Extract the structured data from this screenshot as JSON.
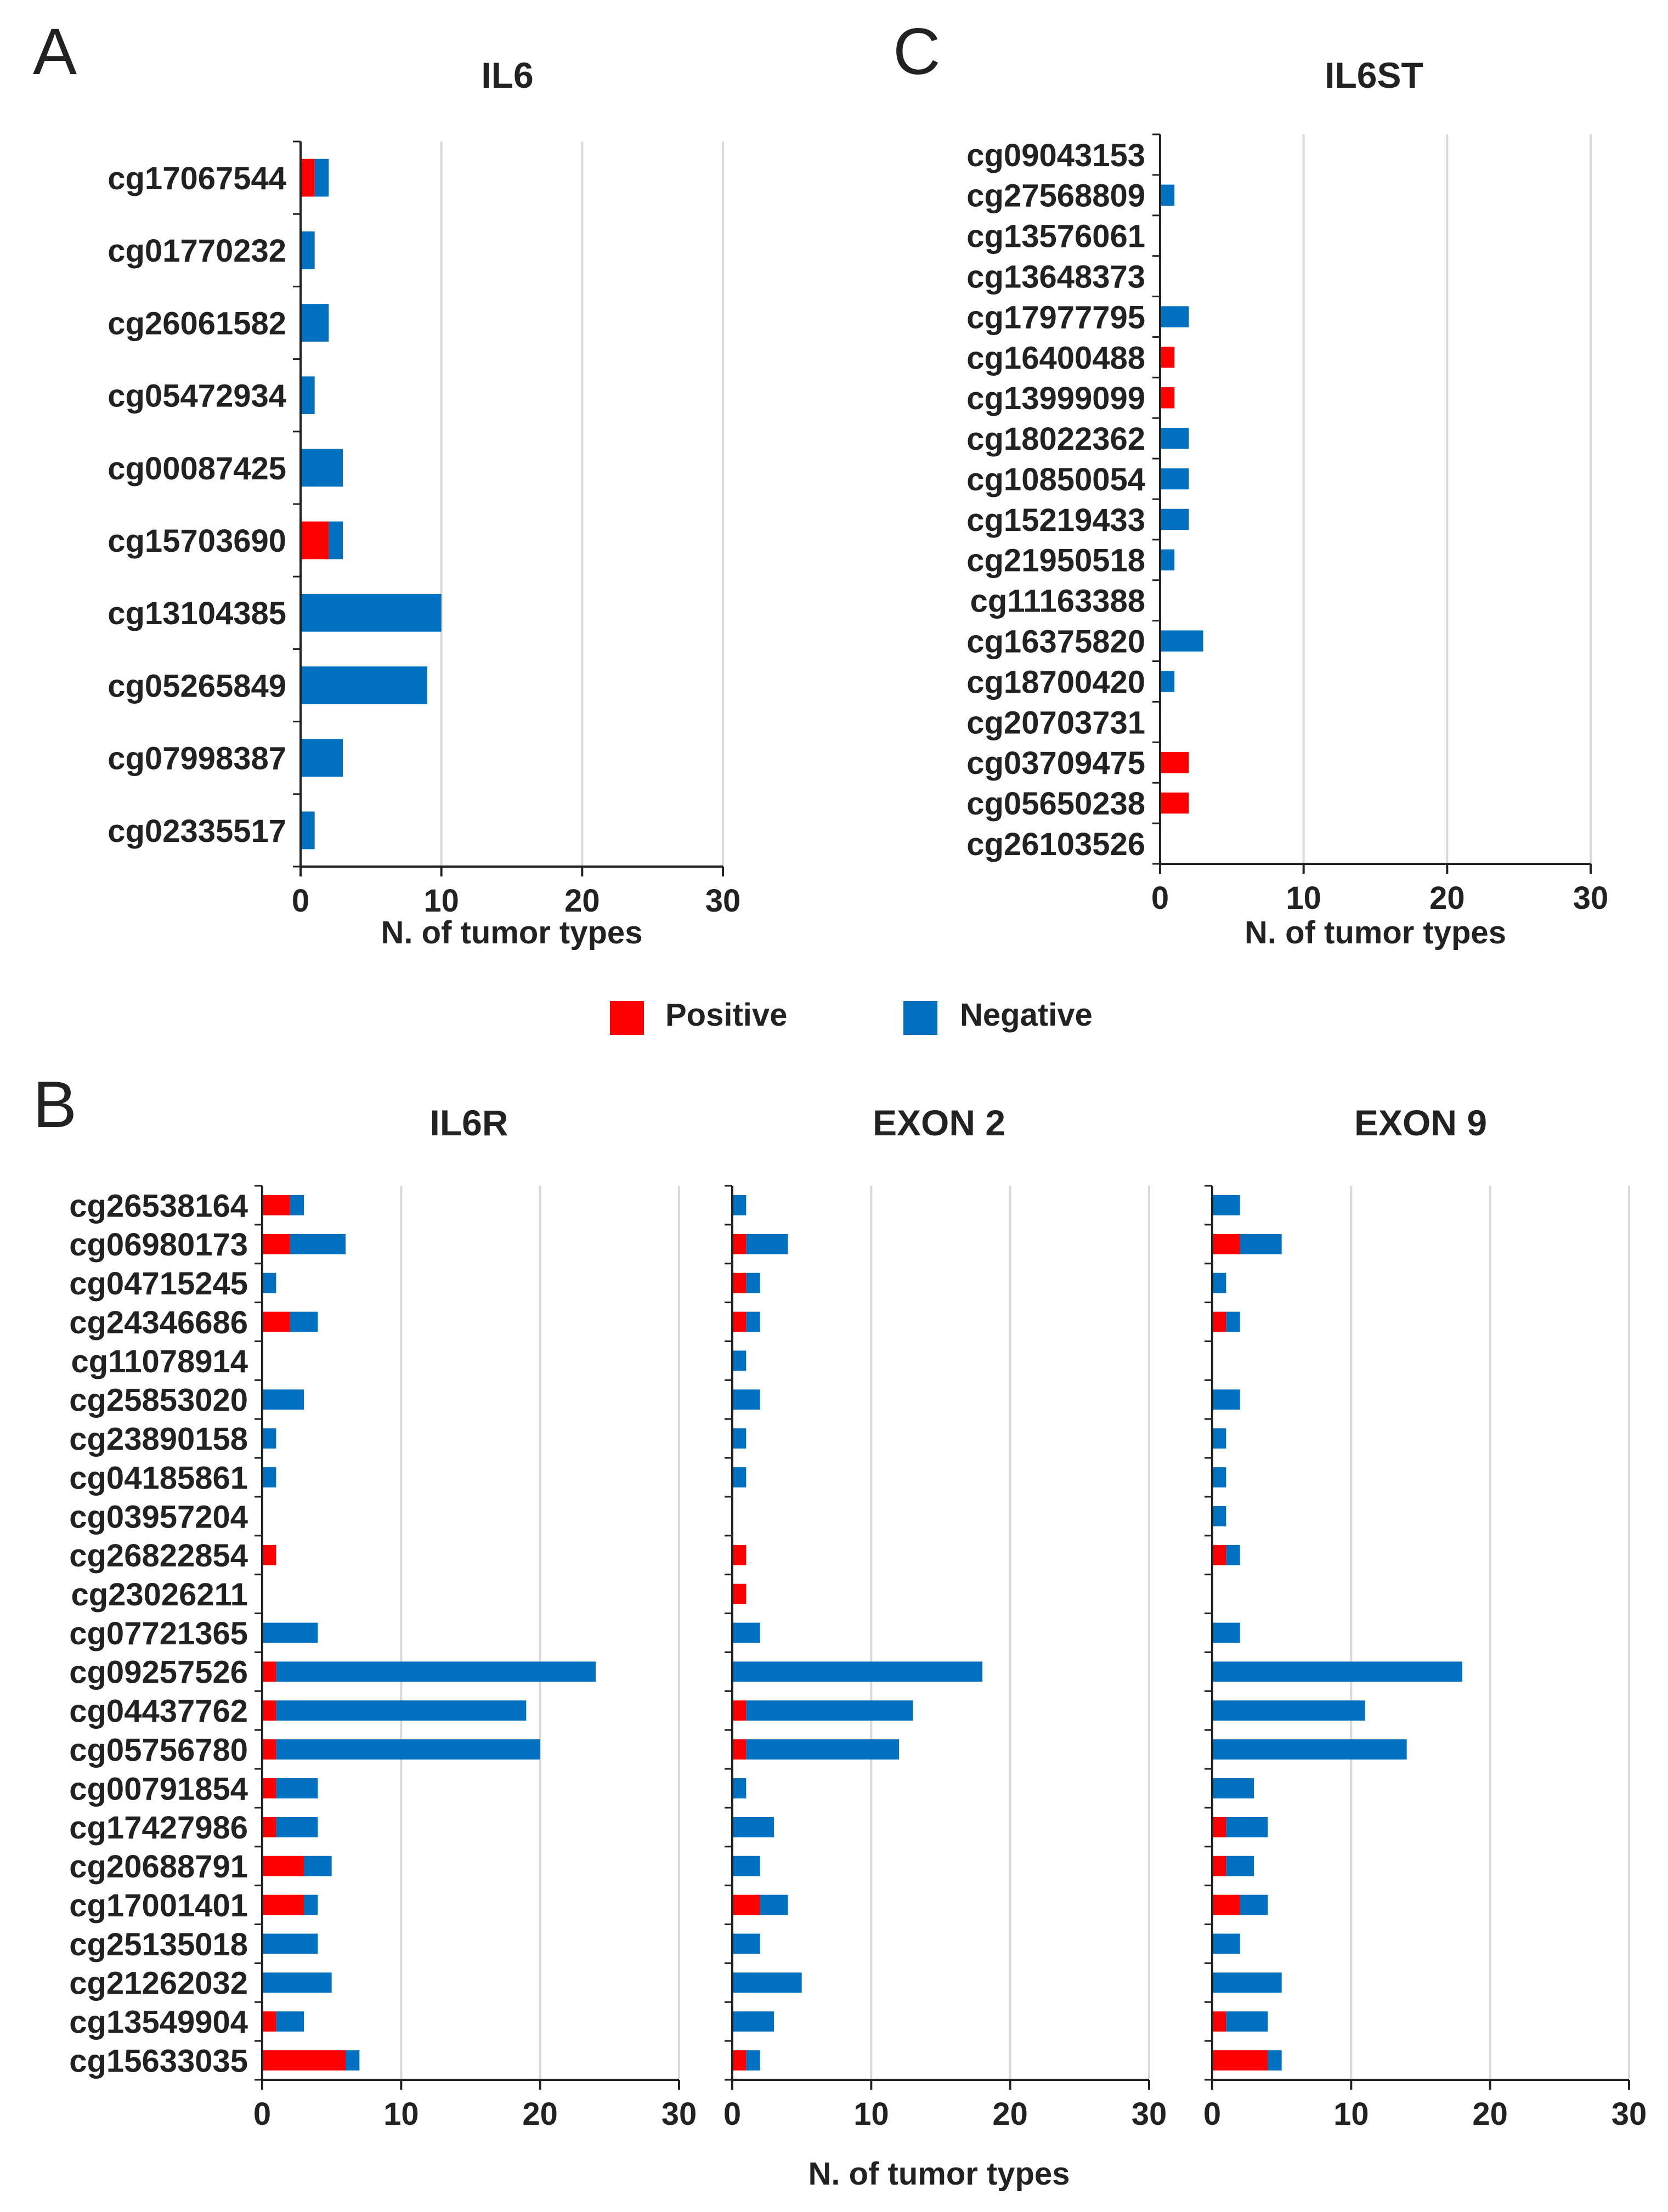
{
  "legend": {
    "positive": {
      "label": "Positive",
      "color": "#ff0000"
    },
    "negative": {
      "label": "Negative",
      "color": "#0070c0"
    }
  },
  "panel_letters": {
    "a": "A",
    "b": "B",
    "c": "C"
  },
  "chart_data": [
    {
      "id": "il6",
      "type": "bar",
      "stacked": true,
      "orientation": "horizontal",
      "title": "IL6",
      "xlabel": "N. of tumor types",
      "xlim": [
        0,
        30
      ],
      "xticks": [
        "0",
        "10",
        "20",
        "30"
      ],
      "categories": [
        "cg17067544",
        "cg01770232",
        "cg26061582",
        "cg05472934",
        "cg00087425",
        "cg15703690",
        "cg13104385",
        "cg05265849",
        "cg07998387",
        "cg02335517"
      ],
      "series": [
        {
          "name": "Positive",
          "values": [
            1,
            0,
            0,
            0,
            0,
            2,
            0,
            0,
            0,
            0
          ]
        },
        {
          "name": "Negative",
          "values": [
            1,
            1,
            2,
            1,
            3,
            1,
            10,
            9,
            3,
            1
          ]
        }
      ]
    },
    {
      "id": "il6st",
      "type": "bar",
      "stacked": true,
      "orientation": "horizontal",
      "title": "IL6ST",
      "xlabel": "N. of tumor types",
      "xlim": [
        0,
        30
      ],
      "xticks": [
        "0",
        "10",
        "20",
        "30"
      ],
      "categories": [
        "cg09043153",
        "cg27568809",
        "cg13576061",
        "cg13648373",
        "cg17977795",
        "cg16400488",
        "cg13999099",
        "cg18022362",
        "cg10850054",
        "cg15219433",
        "cg21950518",
        "cg11163388",
        "cg16375820",
        "cg18700420",
        "cg20703731",
        "cg03709475",
        "cg05650238",
        "cg26103526"
      ],
      "series": [
        {
          "name": "Positive",
          "values": [
            0,
            0,
            0,
            0,
            0,
            1,
            1,
            0,
            0,
            0,
            0,
            0,
            0,
            0,
            0,
            2,
            2,
            0
          ]
        },
        {
          "name": "Negative",
          "values": [
            0,
            1,
            0,
            0,
            2,
            0,
            0,
            2,
            2,
            2,
            1,
            0,
            3,
            1,
            0,
            0,
            0,
            0
          ]
        }
      ]
    },
    {
      "id": "il6r",
      "type": "bar",
      "stacked": true,
      "orientation": "horizontal",
      "title": "IL6R",
      "xlabel": "",
      "xlim": [
        0,
        30
      ],
      "xticks": [
        "0",
        "10",
        "20",
        "30"
      ],
      "categories": [
        "cg26538164",
        "cg06980173",
        "cg04715245",
        "cg24346686",
        "cg11078914",
        "cg25853020",
        "cg23890158",
        "cg04185861",
        "cg03957204",
        "cg26822854",
        "cg23026211",
        "cg07721365",
        "cg09257526",
        "cg04437762",
        "cg05756780",
        "cg00791854",
        "cg17427986",
        "cg20688791",
        "cg17001401",
        "cg25135018",
        "cg21262032",
        "cg13549904",
        "cg15633035"
      ],
      "series": [
        {
          "name": "Positive",
          "values": [
            2,
            2,
            0,
            2,
            0,
            0,
            0,
            0,
            0,
            1,
            0,
            0,
            1,
            1,
            1,
            1,
            1,
            3,
            3,
            0,
            0,
            1,
            6
          ]
        },
        {
          "name": "Negative",
          "values": [
            1,
            4,
            1,
            2,
            0,
            3,
            1,
            1,
            0,
            0,
            0,
            4,
            23,
            18,
            19,
            3,
            3,
            2,
            1,
            4,
            5,
            2,
            1
          ]
        }
      ]
    },
    {
      "id": "exon2",
      "type": "bar",
      "stacked": true,
      "orientation": "horizontal",
      "title": "EXON 2",
      "xlabel": "N. of tumor types",
      "xlim": [
        0,
        30
      ],
      "xticks": [
        "0",
        "10",
        "20",
        "30"
      ],
      "categories": [
        "cg26538164",
        "cg06980173",
        "cg04715245",
        "cg24346686",
        "cg11078914",
        "cg25853020",
        "cg23890158",
        "cg04185861",
        "cg03957204",
        "cg26822854",
        "cg23026211",
        "cg07721365",
        "cg09257526",
        "cg04437762",
        "cg05756780",
        "cg00791854",
        "cg17427986",
        "cg20688791",
        "cg17001401",
        "cg25135018",
        "cg21262032",
        "cg13549904",
        "cg15633035"
      ],
      "series": [
        {
          "name": "Positive",
          "values": [
            0,
            1,
            1,
            1,
            0,
            0,
            0,
            0,
            0,
            1,
            1,
            0,
            0,
            1,
            1,
            0,
            0,
            0,
            2,
            0,
            0,
            0,
            1
          ]
        },
        {
          "name": "Negative",
          "values": [
            1,
            3,
            1,
            1,
            1,
            2,
            1,
            1,
            0,
            0,
            0,
            2,
            18,
            12,
            11,
            1,
            3,
            2,
            2,
            2,
            5,
            3,
            1
          ]
        }
      ]
    },
    {
      "id": "exon9",
      "type": "bar",
      "stacked": true,
      "orientation": "horizontal",
      "title": "EXON 9",
      "xlabel": "",
      "xlim": [
        0,
        30
      ],
      "xticks": [
        "0",
        "10",
        "20",
        "30"
      ],
      "categories": [
        "cg26538164",
        "cg06980173",
        "cg04715245",
        "cg24346686",
        "cg11078914",
        "cg25853020",
        "cg23890158",
        "cg04185861",
        "cg03957204",
        "cg26822854",
        "cg23026211",
        "cg07721365",
        "cg09257526",
        "cg04437762",
        "cg05756780",
        "cg00791854",
        "cg17427986",
        "cg20688791",
        "cg17001401",
        "cg25135018",
        "cg21262032",
        "cg13549904",
        "cg15633035"
      ],
      "series": [
        {
          "name": "Positive",
          "values": [
            0,
            2,
            0,
            1,
            0,
            0,
            0,
            0,
            0,
            1,
            0,
            0,
            0,
            0,
            0,
            0,
            1,
            1,
            2,
            0,
            0,
            1,
            4
          ]
        },
        {
          "name": "Negative",
          "values": [
            2,
            3,
            1,
            1,
            0,
            2,
            1,
            1,
            1,
            1,
            0,
            2,
            18,
            11,
            14,
            3,
            3,
            2,
            2,
            2,
            5,
            3,
            1
          ]
        }
      ]
    }
  ]
}
